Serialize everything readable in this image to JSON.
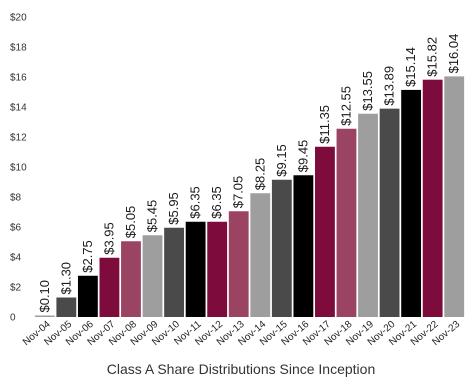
{
  "chart_data": {
    "type": "bar",
    "title": "",
    "xlabel": "Class A Share Distributions Since Inception",
    "ylabel": "",
    "ylim": [
      0,
      20
    ],
    "y_ticks": [
      "0",
      "$2",
      "$4",
      "$6",
      "$8",
      "$10",
      "$12",
      "$14",
      "$16",
      "$18",
      "$20"
    ],
    "grid": false,
    "categories": [
      "Nov-04",
      "Nov-05",
      "Nov-06",
      "Nov-07",
      "Nov-08",
      "Nov-09",
      "Nov-10",
      "Nov-11",
      "Nov-12",
      "Nov-13",
      "Nov-14",
      "Nov-15",
      "Nov-16",
      "Nov-17",
      "Nov-18",
      "Nov-19",
      "Nov-20",
      "Nov-21",
      "Nov-22",
      "Nov-23"
    ],
    "values": [
      0.1,
      1.3,
      2.75,
      3.95,
      5.05,
      5.45,
      5.95,
      6.35,
      6.35,
      7.05,
      8.25,
      9.15,
      9.45,
      11.35,
      12.55,
      13.55,
      13.89,
      15.14,
      15.82,
      16.04
    ],
    "value_labels": [
      "$0.10",
      "$1.30",
      "$2.75",
      "$3.95",
      "$5.05",
      "$5.45",
      "$5.95",
      "$6.35",
      "$6.35",
      "$7.05",
      "$8.25",
      "$9.15",
      "$9.45",
      "$11.35",
      "$12.55",
      "$13.55",
      "$13.89",
      "$15.14",
      "$15.82",
      "$16.04"
    ],
    "bar_colors": [
      "#9e9e9e",
      "#4a4a4a",
      "#000000",
      "#7d0c3c",
      "#9b4362",
      "#9e9e9e",
      "#4a4a4a",
      "#000000",
      "#7d0c3c",
      "#9b4362",
      "#9e9e9e",
      "#4a4a4a",
      "#000000",
      "#7d0c3c",
      "#9b4362",
      "#9e9e9e",
      "#4a4a4a",
      "#000000",
      "#7d0c3c",
      "#9e9e9e"
    ]
  }
}
